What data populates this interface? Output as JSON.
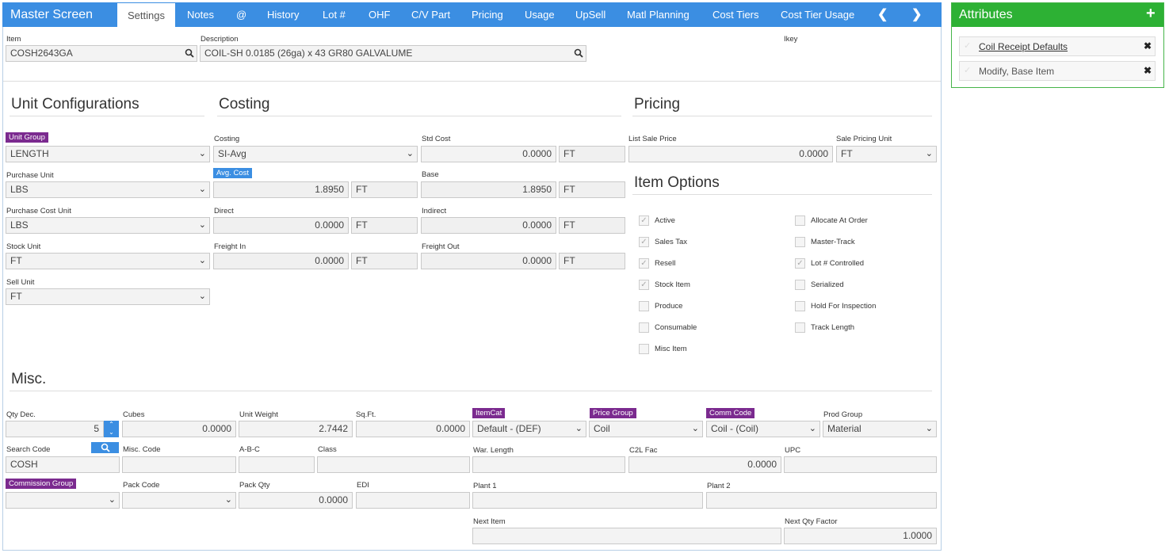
{
  "app_title": "Master Screen",
  "tabs": [
    "Settings",
    "Notes",
    "@",
    "History",
    "Lot #",
    "OHF",
    "C/V Part",
    "Pricing",
    "Usage",
    "UpSell",
    "Matl Planning",
    "Cost Tiers",
    "Cost Tier Usage"
  ],
  "header": {
    "item_label": "Item",
    "item_value": "COSH2643GA",
    "description_label": "Description",
    "description_value": "COIL-SH 0.0185 (26ga) x 43 GR80 GALVALUME",
    "ikey_label": "Ikey"
  },
  "sections": {
    "unit_config": "Unit Configurations",
    "costing": "Costing",
    "pricing": "Pricing",
    "item_options": "Item Options",
    "misc": "Misc."
  },
  "unit_config": {
    "unit_group_label": "Unit Group",
    "unit_group_value": "LENGTH",
    "purchase_unit_label": "Purchase Unit",
    "purchase_unit_value": "LBS",
    "purchase_cost_unit_label": "Purchase Cost Unit",
    "purchase_cost_unit_value": "LBS",
    "stock_unit_label": "Stock Unit",
    "stock_unit_value": "FT",
    "sell_unit_label": "Sell Unit",
    "sell_unit_value": "FT"
  },
  "costing": {
    "costing_label": "Costing",
    "costing_value": "SI-Avg",
    "avg_cost_label": "Avg. Cost",
    "avg_cost_value": "1.8950",
    "avg_cost_unit": "FT",
    "direct_label": "Direct",
    "direct_value": "0.0000",
    "direct_unit": "FT",
    "freight_in_label": "Freight In",
    "freight_in_value": "0.0000",
    "freight_in_unit": "FT",
    "std_cost_label": "Std Cost",
    "std_cost_value": "0.0000",
    "std_cost_unit": "FT",
    "base_label": "Base",
    "base_value": "1.8950",
    "base_unit": "FT",
    "indirect_label": "Indirect",
    "indirect_value": "0.0000",
    "indirect_unit": "FT",
    "freight_out_label": "Freight Out",
    "freight_out_value": "0.0000",
    "freight_out_unit": "FT"
  },
  "pricing": {
    "list_sale_price_label": "List Sale Price",
    "list_sale_price_value": "0.0000",
    "sale_pricing_unit_label": "Sale Pricing Unit",
    "sale_pricing_unit_value": "FT"
  },
  "item_options": {
    "left": [
      {
        "label": "Active",
        "checked": true
      },
      {
        "label": "Sales Tax",
        "checked": true
      },
      {
        "label": "Resell",
        "checked": true
      },
      {
        "label": "Stock Item",
        "checked": true
      },
      {
        "label": "Produce",
        "checked": false
      },
      {
        "label": "Consumable",
        "checked": false
      },
      {
        "label": "Misc Item",
        "checked": false
      }
    ],
    "right": [
      {
        "label": "Allocate At Order",
        "checked": false
      },
      {
        "label": "Master-Track",
        "checked": false
      },
      {
        "label": "Lot # Controlled",
        "checked": true
      },
      {
        "label": "Serialized",
        "checked": false
      },
      {
        "label": "Hold For Inspection",
        "checked": false
      },
      {
        "label": "Track Length",
        "checked": false
      }
    ]
  },
  "misc": {
    "qty_dec_label": "Qty Dec.",
    "qty_dec_value": "5",
    "cubes_label": "Cubes",
    "cubes_value": "0.0000",
    "unit_weight_label": "Unit Weight",
    "unit_weight_value": "2.7442",
    "sqft_label": "Sq.Ft.",
    "sqft_value": "0.0000",
    "itemcat_label": "ItemCat",
    "itemcat_value": "Default - (DEF)",
    "price_group_label": "Price Group",
    "price_group_value": "Coil",
    "comm_code_label": "Comm Code",
    "comm_code_value": "Coil - (Coil)",
    "prod_group_label": "Prod Group",
    "prod_group_value": "Material",
    "search_code_label": "Search Code",
    "search_code_value": "COSH",
    "misc_code_label": "Misc. Code",
    "abc_label": "A-B-C",
    "class_label": "Class",
    "war_length_label": "War. Length",
    "c2l_fac_label": "C2L Fac",
    "c2l_fac_value": "0.0000",
    "upc_label": "UPC",
    "commission_group_label": "Commission Group",
    "pack_code_label": "Pack Code",
    "pack_qty_label": "Pack Qty",
    "pack_qty_value": "0.0000",
    "edi_label": "EDI",
    "plant1_label": "Plant 1",
    "plant2_label": "Plant 2",
    "next_item_label": "Next Item",
    "next_qty_factor_label": "Next Qty Factor",
    "next_qty_factor_value": "1.0000"
  },
  "attributes": {
    "title": "Attributes",
    "items": [
      "Coil Receipt Defaults",
      "Modify, Base Item"
    ]
  },
  "colors": {
    "tab_bar": "#3b8ee2",
    "tag_purple": "#7b2a8f",
    "tag_blue": "#3b8ee2",
    "attributes_green": "#2db134"
  }
}
